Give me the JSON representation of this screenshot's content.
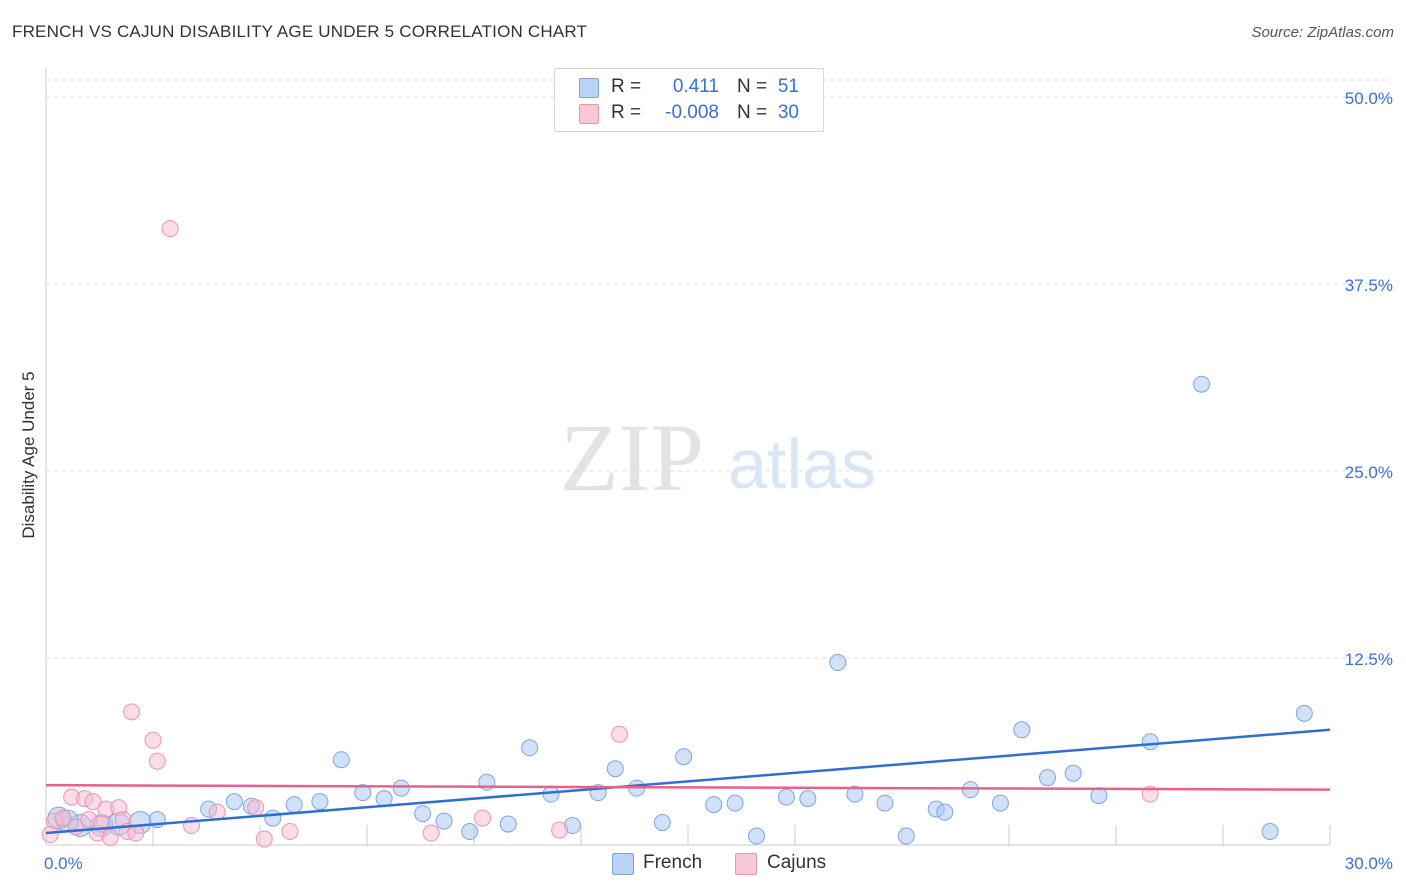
{
  "title": "FRENCH VS CAJUN DISABILITY AGE UNDER 5 CORRELATION CHART",
  "source": "Source: ZipAtlas.com",
  "watermark": {
    "zip": "ZIP",
    "atlas": "atlas"
  },
  "legend": {
    "french": {
      "r_label": "R =",
      "r_value": "0.411",
      "n_label": "N =",
      "n_value": "51"
    },
    "cajuns": {
      "r_label": "R =",
      "r_value": "-0.008",
      "n_label": "N =",
      "n_value": "30"
    }
  },
  "bottom_legend": {
    "french": "French",
    "cajuns": "Cajuns"
  },
  "colors": {
    "french_fill": "#a9c8f2",
    "french_stroke": "#7ea5e0",
    "french_line": "#2f6fd0",
    "cajun_fill": "#f6bccd",
    "cajun_stroke": "#ee93b0",
    "cajun_line": "#e8608e",
    "axis_label": "#3a6fd8",
    "grid": "#dddddd"
  },
  "chart_data": {
    "type": "scatter",
    "title": "FRENCH VS CAJUN DISABILITY AGE UNDER 5 CORRELATION CHART",
    "xlabel": "",
    "ylabel": "Disability Age Under 5",
    "xlim": [
      0,
      30
    ],
    "ylim": [
      0,
      50
    ],
    "x_tick_labels": [
      {
        "value": 0,
        "label": "0.0%"
      },
      {
        "value": 30,
        "label": "30.0%"
      }
    ],
    "y_tick_labels": [
      {
        "value": 12.5,
        "label": "12.5%"
      },
      {
        "value": 25,
        "label": "25.0%"
      },
      {
        "value": 37.5,
        "label": "37.5%"
      },
      {
        "value": 50,
        "label": "50.0%"
      }
    ],
    "series": [
      {
        "name": "French",
        "r": 0.411,
        "n": 51,
        "trend": {
          "x0": 0,
          "y0": 0.8,
          "x1": 30,
          "y1": 7.7
        },
        "points": [
          [
            0.3,
            1.8
          ],
          [
            0.8,
            1.3
          ],
          [
            1.3,
            1.3
          ],
          [
            1.7,
            1.4
          ],
          [
            2.2,
            1.5
          ],
          [
            2.6,
            1.7
          ],
          [
            3.8,
            2.4
          ],
          [
            4.4,
            2.9
          ],
          [
            4.8,
            2.6
          ],
          [
            5.3,
            1.8
          ],
          [
            5.8,
            2.7
          ],
          [
            6.4,
            2.9
          ],
          [
            6.9,
            5.7
          ],
          [
            7.4,
            3.5
          ],
          [
            7.9,
            3.1
          ],
          [
            8.3,
            3.8
          ],
          [
            8.8,
            2.1
          ],
          [
            9.3,
            1.6
          ],
          [
            9.9,
            0.9
          ],
          [
            10.3,
            4.2
          ],
          [
            10.8,
            1.4
          ],
          [
            11.3,
            6.5
          ],
          [
            11.8,
            3.4
          ],
          [
            12.3,
            1.3
          ],
          [
            12.9,
            3.5
          ],
          [
            13.3,
            5.1
          ],
          [
            13.8,
            3.8
          ],
          [
            14.4,
            1.5
          ],
          [
            14.9,
            5.9
          ],
          [
            15.6,
            2.7
          ],
          [
            16.1,
            2.8
          ],
          [
            16.6,
            0.6
          ],
          [
            17.3,
            3.2
          ],
          [
            17.8,
            3.1
          ],
          [
            18.5,
            12.2
          ],
          [
            18.9,
            3.4
          ],
          [
            19.6,
            2.8
          ],
          [
            20.1,
            0.6
          ],
          [
            20.8,
            2.4
          ],
          [
            21.0,
            2.2
          ],
          [
            21.6,
            3.7
          ],
          [
            22.3,
            2.8
          ],
          [
            22.8,
            7.7
          ],
          [
            23.4,
            4.5
          ],
          [
            24.0,
            4.8
          ],
          [
            24.6,
            3.3
          ],
          [
            25.8,
            6.9
          ],
          [
            27.0,
            30.8
          ],
          [
            28.6,
            0.9
          ],
          [
            29.4,
            8.8
          ],
          [
            0.5,
            1.6
          ]
        ]
      },
      {
        "name": "Cajuns",
        "r": -0.008,
        "n": 30,
        "trend": {
          "x0": 0,
          "y0": 4.0,
          "x1": 30,
          "y1": 3.7
        },
        "points": [
          [
            0.2,
            1.6
          ],
          [
            0.4,
            1.8
          ],
          [
            0.6,
            3.2
          ],
          [
            0.7,
            1.2
          ],
          [
            0.9,
            3.1
          ],
          [
            1.0,
            1.7
          ],
          [
            1.1,
            2.9
          ],
          [
            1.2,
            0.8
          ],
          [
            1.4,
            2.4
          ],
          [
            1.5,
            0.5
          ],
          [
            1.7,
            2.5
          ],
          [
            1.8,
            1.7
          ],
          [
            1.9,
            0.9
          ],
          [
            2.1,
            0.8
          ],
          [
            2.0,
            8.9
          ],
          [
            2.5,
            7.0
          ],
          [
            2.6,
            5.6
          ],
          [
            2.9,
            41.2
          ],
          [
            3.4,
            1.3
          ],
          [
            4.0,
            2.2
          ],
          [
            4.9,
            2.5
          ],
          [
            5.1,
            0.4
          ],
          [
            5.7,
            0.9
          ],
          [
            9.0,
            0.8
          ],
          [
            10.2,
            1.8
          ],
          [
            12.0,
            1.0
          ],
          [
            13.4,
            7.4
          ],
          [
            25.8,
            3.4
          ],
          [
            0.1,
            0.7
          ],
          [
            1.3,
            1.4
          ]
        ]
      }
    ]
  }
}
